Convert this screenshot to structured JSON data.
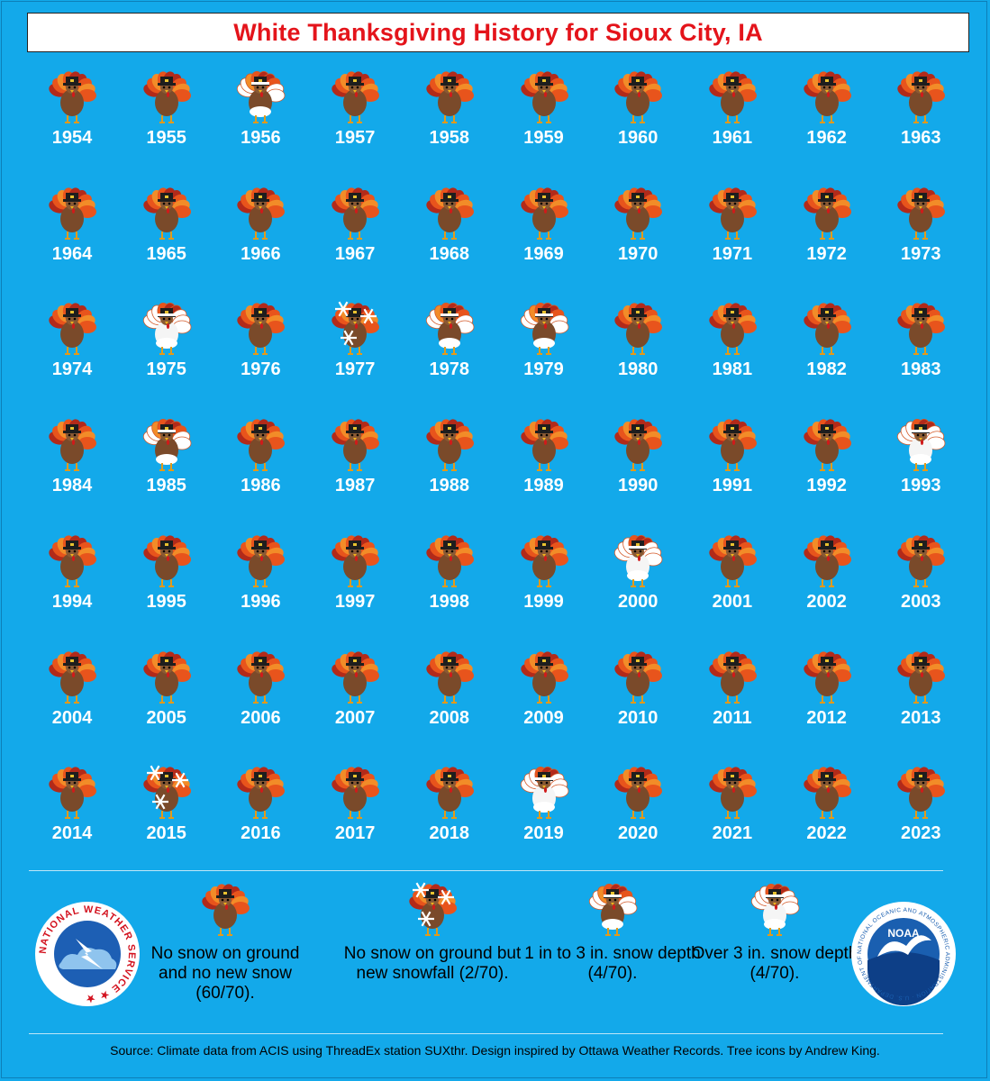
{
  "title": "White Thanksgiving History for Sioux City, IA",
  "chart_data": {
    "type": "table",
    "category_colors": {
      "none": "#7a4a2a",
      "new_snow": "#7a4a2a",
      "depth_1_3": "#ffffff",
      "depth_over_3": "#ffffff"
    },
    "years": [
      {
        "year": "1954",
        "category": "none"
      },
      {
        "year": "1955",
        "category": "none"
      },
      {
        "year": "1956",
        "category": "depth_1_3"
      },
      {
        "year": "1957",
        "category": "none"
      },
      {
        "year": "1958",
        "category": "none"
      },
      {
        "year": "1959",
        "category": "none"
      },
      {
        "year": "1960",
        "category": "none"
      },
      {
        "year": "1961",
        "category": "none"
      },
      {
        "year": "1962",
        "category": "none"
      },
      {
        "year": "1963",
        "category": "none"
      },
      {
        "year": "1964",
        "category": "none"
      },
      {
        "year": "1965",
        "category": "none"
      },
      {
        "year": "1966",
        "category": "none"
      },
      {
        "year": "1967",
        "category": "none"
      },
      {
        "year": "1968",
        "category": "none"
      },
      {
        "year": "1969",
        "category": "none"
      },
      {
        "year": "1970",
        "category": "none"
      },
      {
        "year": "1971",
        "category": "none"
      },
      {
        "year": "1972",
        "category": "none"
      },
      {
        "year": "1973",
        "category": "none"
      },
      {
        "year": "1974",
        "category": "none"
      },
      {
        "year": "1975",
        "category": "depth_over_3"
      },
      {
        "year": "1976",
        "category": "none"
      },
      {
        "year": "1977",
        "category": "new_snow"
      },
      {
        "year": "1978",
        "category": "depth_1_3"
      },
      {
        "year": "1979",
        "category": "depth_1_3"
      },
      {
        "year": "1980",
        "category": "none"
      },
      {
        "year": "1981",
        "category": "none"
      },
      {
        "year": "1982",
        "category": "none"
      },
      {
        "year": "1983",
        "category": "none"
      },
      {
        "year": "1984",
        "category": "none"
      },
      {
        "year": "1985",
        "category": "depth_1_3"
      },
      {
        "year": "1986",
        "category": "none"
      },
      {
        "year": "1987",
        "category": "none"
      },
      {
        "year": "1988",
        "category": "none"
      },
      {
        "year": "1989",
        "category": "none"
      },
      {
        "year": "1990",
        "category": "none"
      },
      {
        "year": "1991",
        "category": "none"
      },
      {
        "year": "1992",
        "category": "none"
      },
      {
        "year": "1993",
        "category": "depth_over_3"
      },
      {
        "year": "1994",
        "category": "none"
      },
      {
        "year": "1995",
        "category": "none"
      },
      {
        "year": "1996",
        "category": "none"
      },
      {
        "year": "1997",
        "category": "none"
      },
      {
        "year": "1998",
        "category": "none"
      },
      {
        "year": "1999",
        "category": "none"
      },
      {
        "year": "2000",
        "category": "depth_over_3"
      },
      {
        "year": "2001",
        "category": "none"
      },
      {
        "year": "2002",
        "category": "none"
      },
      {
        "year": "2003",
        "category": "none"
      },
      {
        "year": "2004",
        "category": "none"
      },
      {
        "year": "2005",
        "category": "none"
      },
      {
        "year": "2006",
        "category": "none"
      },
      {
        "year": "2007",
        "category": "none"
      },
      {
        "year": "2008",
        "category": "none"
      },
      {
        "year": "2009",
        "category": "none"
      },
      {
        "year": "2010",
        "category": "none"
      },
      {
        "year": "2011",
        "category": "none"
      },
      {
        "year": "2012",
        "category": "none"
      },
      {
        "year": "2013",
        "category": "none"
      },
      {
        "year": "2014",
        "category": "none"
      },
      {
        "year": "2015",
        "category": "new_snow"
      },
      {
        "year": "2016",
        "category": "none"
      },
      {
        "year": "2017",
        "category": "none"
      },
      {
        "year": "2018",
        "category": "none"
      },
      {
        "year": "2019",
        "category": "depth_over_3"
      },
      {
        "year": "2020",
        "category": "none"
      },
      {
        "year": "2021",
        "category": "none"
      },
      {
        "year": "2022",
        "category": "none"
      },
      {
        "year": "2023",
        "category": "none"
      }
    ]
  },
  "legend": {
    "none": "No snow on ground and no new snow (60/70).",
    "new_snow": "No snow on ground but new snowfall (2/70).",
    "depth_1_3": "1 in to 3 in. snow depth (4/70).",
    "depth_over_3": "Over 3 in. snow depth (4/70)."
  },
  "logos": {
    "nws": "NATIONAL WEATHER SERVICE",
    "noaa": "NOAA",
    "noaa_ring": "NATIONAL OCEANIC AND ATMOSPHERIC ADMINISTRATION · U.S. DEPARTMENT OF COMMERCE"
  },
  "source": "Source: Climate data from ACIS using ThreadEx station SUXthr. Design inspired by Ottawa Weather Records. Tree icons by Andrew King."
}
